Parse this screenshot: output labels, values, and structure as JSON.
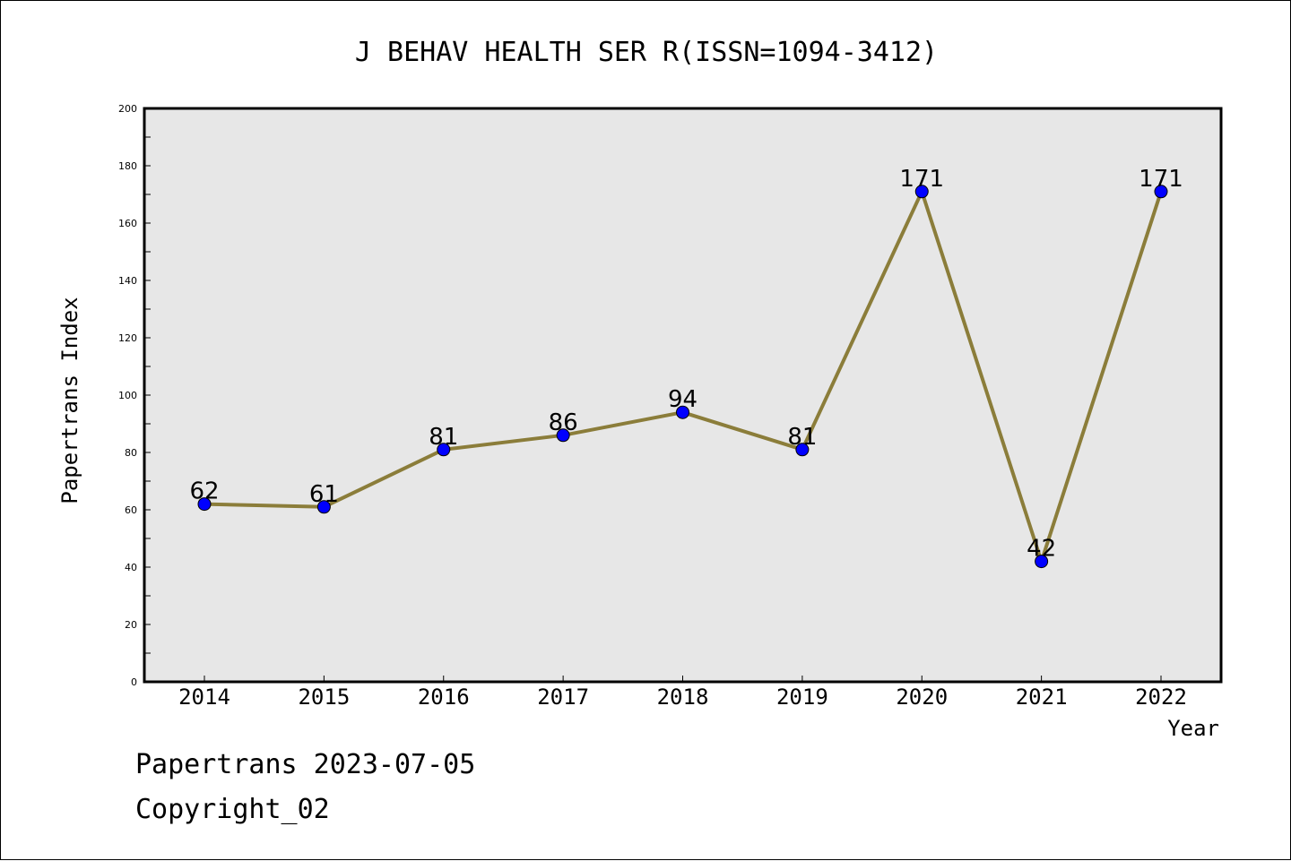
{
  "chart_data": {
    "type": "line",
    "title": "J BEHAV HEALTH SER R(ISSN=1094-3412)",
    "xlabel": "Year",
    "ylabel": "Papertrans Index",
    "categories": [
      "2014",
      "2015",
      "2016",
      "2017",
      "2018",
      "2019",
      "2020",
      "2021",
      "2022"
    ],
    "series": [
      {
        "values": [
          62,
          61,
          81,
          86,
          94,
          81,
          171,
          42,
          171
        ],
        "line_color": "#8b7d3a",
        "marker_color": "#0000ff"
      }
    ],
    "data_labels": [
      "62",
      "61",
      "81",
      "86",
      "94",
      "81",
      "171",
      "42",
      "171"
    ],
    "ylim": [
      0,
      200
    ],
    "y_ticks": [
      "0",
      "20",
      "40",
      "60",
      "80",
      "100",
      "120",
      "140",
      "160",
      "180",
      "200"
    ],
    "grid": false,
    "plot_background": "#e7e7e7"
  },
  "footer": {
    "date_text": "Papertrans 2023-07-05",
    "copyright_text": "Copyright_02"
  }
}
